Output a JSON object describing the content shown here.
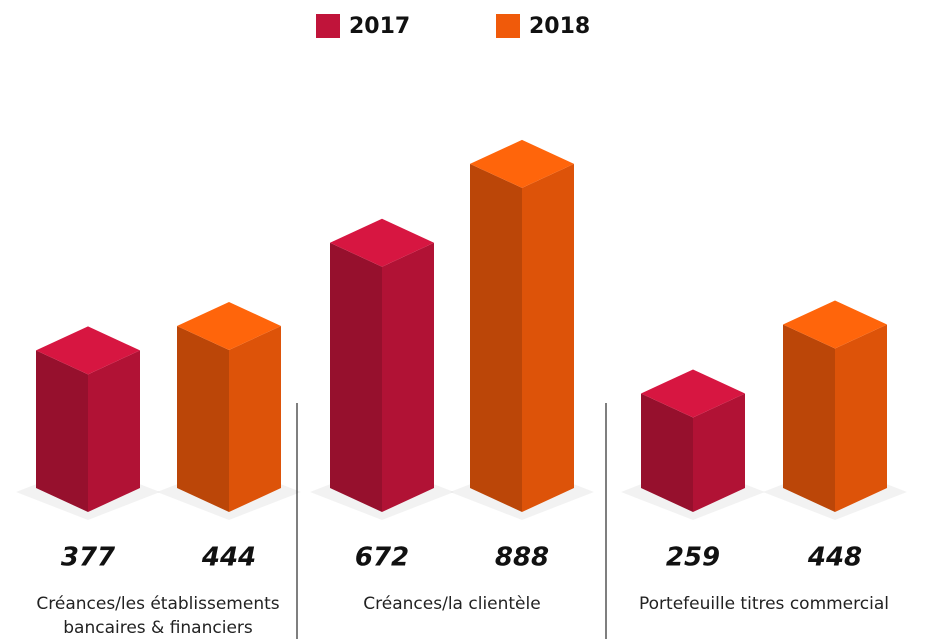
{
  "chart_data": {
    "type": "bar",
    "categories": [
      "Créances/les établissements bancaires & financiers",
      "Créances/la clientèle",
      "Portefeuille titres commercial"
    ],
    "series": [
      {
        "name": "2017",
        "color": "#c0143a",
        "values": [
          377,
          672,
          259
        ]
      },
      {
        "name": "2018",
        "color": "#f05a0a",
        "values": [
          444,
          888,
          448
        ]
      }
    ]
  }
}
